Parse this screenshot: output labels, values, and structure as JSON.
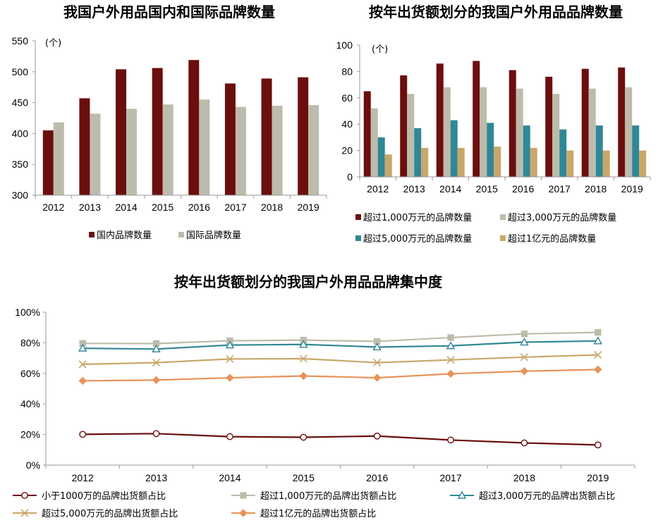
{
  "chart_data": [
    {
      "type": "bar",
      "title": "我国户外用品国内和国际品牌数量",
      "unit_label": "(个)",
      "categories": [
        "2012",
        "2013",
        "2014",
        "2015",
        "2016",
        "2017",
        "2018",
        "2019"
      ],
      "ylim": [
        300,
        550
      ],
      "yticks": [
        "300",
        "350",
        "400",
        "450",
        "500",
        "550"
      ],
      "legend_position": "bottom",
      "series": [
        {
          "name": "国内品牌数量",
          "color": "#6b0e0e",
          "values": [
            405,
            457,
            504,
            506,
            519,
            481,
            489,
            491
          ]
        },
        {
          "name": "国际品牌数量",
          "color": "#bdbcac",
          "values": [
            418,
            432,
            440,
            447,
            455,
            443,
            445,
            446
          ]
        }
      ]
    },
    {
      "type": "bar",
      "title": "按年出货额划分的我国户外用品品牌数量",
      "unit_label": "(个)",
      "categories": [
        "2012",
        "2013",
        "2014",
        "2015",
        "2016",
        "2017",
        "2018",
        "2019"
      ],
      "ylim": [
        0,
        100
      ],
      "yticks": [
        "0",
        "20",
        "40",
        "60",
        "80",
        "100"
      ],
      "legend_position": "bottom",
      "series": [
        {
          "name": "超过1,000万元的品牌数量",
          "color": "#6b0e0e",
          "values": [
            65,
            77,
            86,
            88,
            81,
            76,
            82,
            83
          ]
        },
        {
          "name": "超过3,000万元的品牌数量",
          "color": "#bdbcac",
          "values": [
            52,
            63,
            68,
            68,
            67,
            63,
            67,
            68
          ]
        },
        {
          "name": "超过5,000万元的品牌数量",
          "color": "#318795",
          "values": [
            30,
            37,
            43,
            41,
            39,
            36,
            39,
            39
          ]
        },
        {
          "name": "超过1亿元的品牌数量",
          "color": "#c9a76a",
          "values": [
            17,
            22,
            22,
            23,
            22,
            20,
            20,
            20
          ]
        }
      ]
    },
    {
      "type": "line",
      "title": "按年出货额划分的我国户外用品品牌集中度",
      "categories": [
        "2012",
        "2013",
        "2014",
        "2015",
        "2016",
        "2017",
        "2018",
        "2019"
      ],
      "ylim": [
        0,
        100
      ],
      "yticks": [
        "0%",
        "20%",
        "40%",
        "60%",
        "80%",
        "100%"
      ],
      "legend_position": "bottom",
      "series": [
        {
          "name": "小于1000万的品牌出货额占比",
          "color": "#6b0e0e",
          "marker": "circle",
          "values": [
            20.1,
            20.6,
            18.6,
            18.2,
            19.0,
            16.4,
            14.5,
            13.2
          ]
        },
        {
          "name": "超过1,000万元的品牌出货额占比",
          "color": "#bdbcac",
          "marker": "square",
          "values": [
            79.6,
            79.5,
            81.3,
            81.7,
            80.9,
            83.4,
            85.8,
            86.8
          ]
        },
        {
          "name": "超过3,000万元的品牌出货额占比",
          "color": "#318795",
          "marker": "triangle",
          "values": [
            76.4,
            75.9,
            78.5,
            78.9,
            77.2,
            78.0,
            80.4,
            81.2
          ]
        },
        {
          "name": "超过5,000万元的品牌出货额占比",
          "color": "#c9a76a",
          "marker": "x",
          "values": [
            65.9,
            67.0,
            69.4,
            69.6,
            67.0,
            68.8,
            70.6,
            72.1
          ]
        },
        {
          "name": "超过1亿元的品牌出货额占比",
          "color": "#e8925a",
          "marker": "diamond",
          "values": [
            55.1,
            55.6,
            57.1,
            58.3,
            57.1,
            59.7,
            61.4,
            62.5
          ]
        }
      ]
    }
  ]
}
